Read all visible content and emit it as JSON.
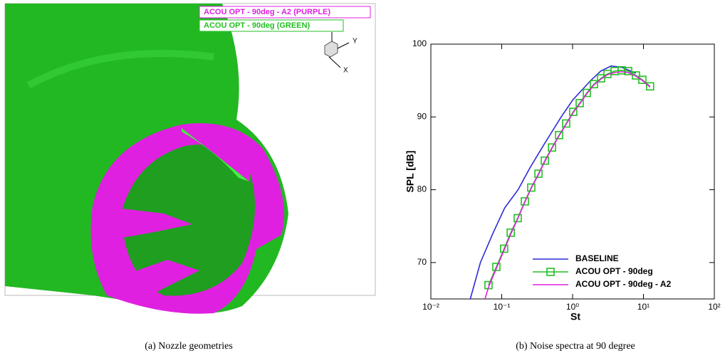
{
  "render": {
    "legend": [
      "ACOU OPT - 90deg - A2 (PURPLE)",
      "ACOU OPT - 90deg (GREEN)"
    ],
    "axes": [
      "Y",
      "X"
    ]
  },
  "captions": [
    "(a) Nozzle geometries",
    "(b) Noise spectra at 90 degree"
  ],
  "chart_data": {
    "type": "line",
    "xlabel": "St",
    "ylabel": "SPL [dB]",
    "xscale": "log",
    "xlim": [
      0.01,
      100
    ],
    "xticks": [
      {
        "value": 0.01,
        "label": "10⁻²"
      },
      {
        "value": 0.1,
        "label": "10⁻¹"
      },
      {
        "value": 1,
        "label": "10⁰"
      },
      {
        "value": 10,
        "label": "10¹"
      },
      {
        "value": 100,
        "label": "10²"
      }
    ],
    "ylim": [
      65,
      100
    ],
    "yticks": [
      70,
      80,
      90,
      100
    ],
    "legend": "lower right",
    "series": [
      {
        "name": "BASELINE",
        "color": "#2b2bd6",
        "x": [
          0.036,
          0.05,
          0.075,
          0.11,
          0.17,
          0.25,
          0.4,
          0.69,
          1.0,
          1.8,
          2.5,
          3.5,
          5,
          7.8
        ],
        "values": [
          65,
          70,
          74,
          77.5,
          80,
          83,
          86.3,
          90,
          92.3,
          95,
          96.3,
          97,
          96.8,
          96
        ]
      },
      {
        "name": "ACOU OPT - 90deg",
        "color": "#22c022",
        "marker": "square",
        "x": [
          0.065,
          0.084,
          0.108,
          0.134,
          0.168,
          0.212,
          0.261,
          0.33,
          0.406,
          0.512,
          0.644,
          0.812,
          1.02,
          1.26,
          1.59,
          2.0,
          2.52,
          3.1,
          3.92,
          4.93,
          6.08,
          7.83,
          9.66,
          12.4
        ],
        "values": [
          66.9,
          69.4,
          71.9,
          74.1,
          76.1,
          78.4,
          80.3,
          82.2,
          84.0,
          85.8,
          87.5,
          89.1,
          90.7,
          91.9,
          93.3,
          94.5,
          95.3,
          95.9,
          96.3,
          96.4,
          96.3,
          95.7,
          95.1,
          94.2
        ]
      },
      {
        "name": "ACOU OPT - 90deg - A2",
        "color": "#e020e0",
        "x": [
          0.058,
          0.065,
          0.084,
          0.108,
          0.134,
          0.168,
          0.212,
          0.261,
          0.33,
          0.406,
          0.512,
          0.644,
          0.812,
          1.02,
          1.26,
          1.59,
          2.0,
          2.52,
          3.1,
          3.92,
          4.93,
          6.08,
          7.83,
          9.66,
          12.4
        ],
        "values": [
          65,
          66.6,
          69.2,
          71.7,
          73.9,
          76.0,
          78.3,
          80.2,
          82.1,
          83.9,
          85.7,
          87.4,
          89.0,
          90.6,
          91.8,
          93.2,
          94.4,
          95.2,
          95.8,
          96.1,
          96.2,
          96.1,
          95.6,
          95.0,
          94.1
        ]
      }
    ]
  }
}
